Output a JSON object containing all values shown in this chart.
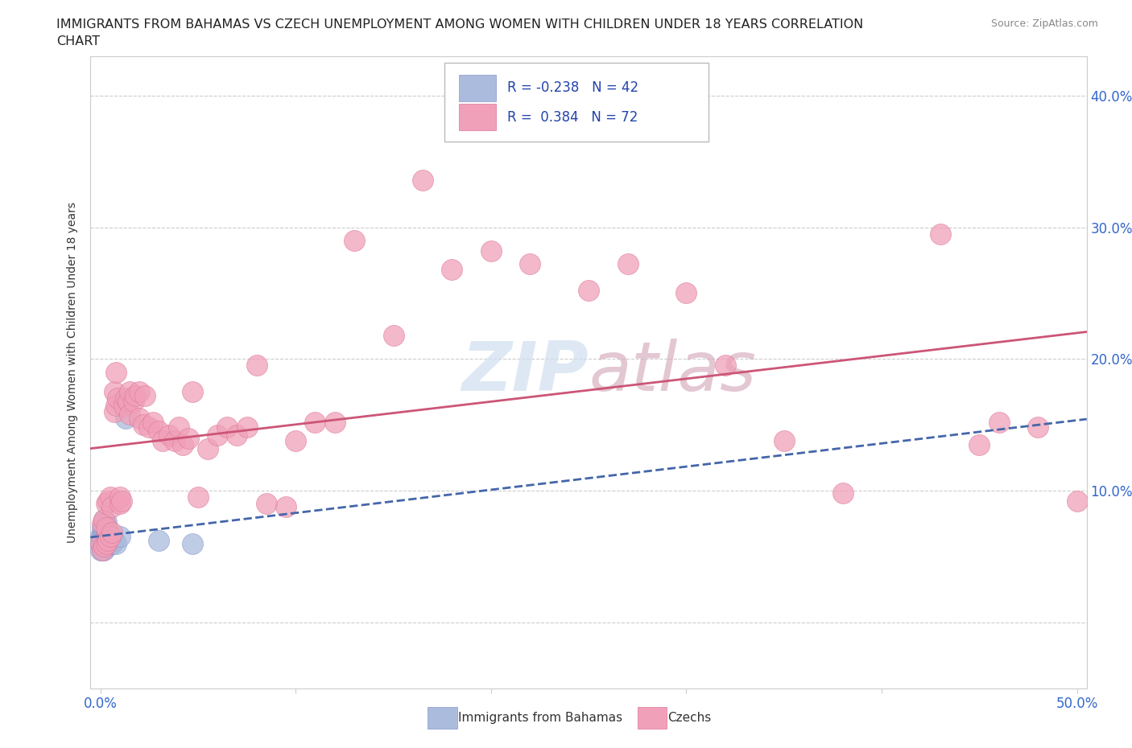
{
  "title_line1": "IMMIGRANTS FROM BAHAMAS VS CZECH UNEMPLOYMENT AMONG WOMEN WITH CHILDREN UNDER 18 YEARS CORRELATION",
  "title_line2": "CHART",
  "source_text": "Source: ZipAtlas.com",
  "ylabel": "Unemployment Among Women with Children Under 18 years",
  "xlim": [
    -0.005,
    0.505
  ],
  "ylim": [
    -0.05,
    0.43
  ],
  "xticks": [
    0.0,
    0.1,
    0.2,
    0.3,
    0.4,
    0.5
  ],
  "yticks": [
    0.0,
    0.1,
    0.2,
    0.3,
    0.4
  ],
  "ytick_labels": [
    "",
    "10.0%",
    "20.0%",
    "30.0%",
    "40.0%"
  ],
  "xtick_labels": [
    "0.0%",
    "",
    "",
    "",
    "",
    "50.0%"
  ],
  "grid_color": "#cccccc",
  "watermark_color": "#d0dff0",
  "watermark_color2": "#d8b0c0",
  "series": [
    {
      "name": "Immigrants from Bahamas",
      "R": -0.238,
      "N": 42,
      "color": "#aabbdd",
      "edge_color": "#8899cc",
      "line_color": "#4466aa",
      "line_style": "--",
      "x": [
        0.0,
        0.0,
        0.0,
        0.001,
        0.001,
        0.001,
        0.001,
        0.001,
        0.001,
        0.001,
        0.002,
        0.002,
        0.002,
        0.002,
        0.002,
        0.002,
        0.002,
        0.002,
        0.002,
        0.002,
        0.003,
        0.003,
        0.003,
        0.003,
        0.003,
        0.003,
        0.003,
        0.003,
        0.004,
        0.004,
        0.004,
        0.004,
        0.005,
        0.005,
        0.005,
        0.006,
        0.007,
        0.008,
        0.01,
        0.013,
        0.03,
        0.047
      ],
      "y": [
        0.055,
        0.06,
        0.065,
        0.055,
        0.058,
        0.06,
        0.063,
        0.065,
        0.068,
        0.072,
        0.055,
        0.058,
        0.06,
        0.062,
        0.065,
        0.068,
        0.07,
        0.072,
        0.074,
        0.078,
        0.057,
        0.06,
        0.062,
        0.065,
        0.067,
        0.07,
        0.073,
        0.076,
        0.06,
        0.063,
        0.067,
        0.07,
        0.06,
        0.063,
        0.066,
        0.06,
        0.062,
        0.06,
        0.065,
        0.155,
        0.062,
        0.06
      ]
    },
    {
      "name": "Czechs",
      "R": 0.384,
      "N": 72,
      "color": "#f0a0b8",
      "edge_color": "#dd7799",
      "line_color": "#cc5577",
      "line_style": "-",
      "x": [
        0.0,
        0.001,
        0.001,
        0.002,
        0.002,
        0.003,
        0.003,
        0.003,
        0.004,
        0.004,
        0.005,
        0.005,
        0.006,
        0.006,
        0.007,
        0.007,
        0.008,
        0.008,
        0.009,
        0.01,
        0.01,
        0.011,
        0.012,
        0.013,
        0.014,
        0.015,
        0.015,
        0.017,
        0.018,
        0.02,
        0.02,
        0.022,
        0.023,
        0.025,
        0.027,
        0.03,
        0.032,
        0.035,
        0.038,
        0.04,
        0.042,
        0.045,
        0.047,
        0.05,
        0.055,
        0.06,
        0.065,
        0.07,
        0.075,
        0.08,
        0.085,
        0.095,
        0.1,
        0.11,
        0.12,
        0.13,
        0.15,
        0.165,
        0.18,
        0.2,
        0.22,
        0.25,
        0.27,
        0.3,
        0.32,
        0.35,
        0.38,
        0.43,
        0.45,
        0.46,
        0.48,
        0.5
      ],
      "y": [
        0.06,
        0.055,
        0.075,
        0.058,
        0.078,
        0.06,
        0.072,
        0.09,
        0.062,
        0.092,
        0.065,
        0.095,
        0.068,
        0.088,
        0.16,
        0.175,
        0.165,
        0.19,
        0.17,
        0.09,
        0.095,
        0.092,
        0.165,
        0.17,
        0.168,
        0.158,
        0.175,
        0.168,
        0.172,
        0.155,
        0.175,
        0.15,
        0.172,
        0.148,
        0.152,
        0.145,
        0.138,
        0.142,
        0.138,
        0.148,
        0.135,
        0.14,
        0.175,
        0.095,
        0.132,
        0.142,
        0.148,
        0.142,
        0.148,
        0.195,
        0.09,
        0.088,
        0.138,
        0.152,
        0.152,
        0.29,
        0.218,
        0.336,
        0.268,
        0.282,
        0.272,
        0.252,
        0.272,
        0.25,
        0.195,
        0.138,
        0.098,
        0.295,
        0.135,
        0.152,
        0.148,
        0.092
      ]
    }
  ],
  "bottom_legend_labels": [
    "Immigrants from Bahamas",
    "Czechs"
  ],
  "bottom_legend_colors": [
    "#aabbdd",
    "#f0a0b8"
  ]
}
